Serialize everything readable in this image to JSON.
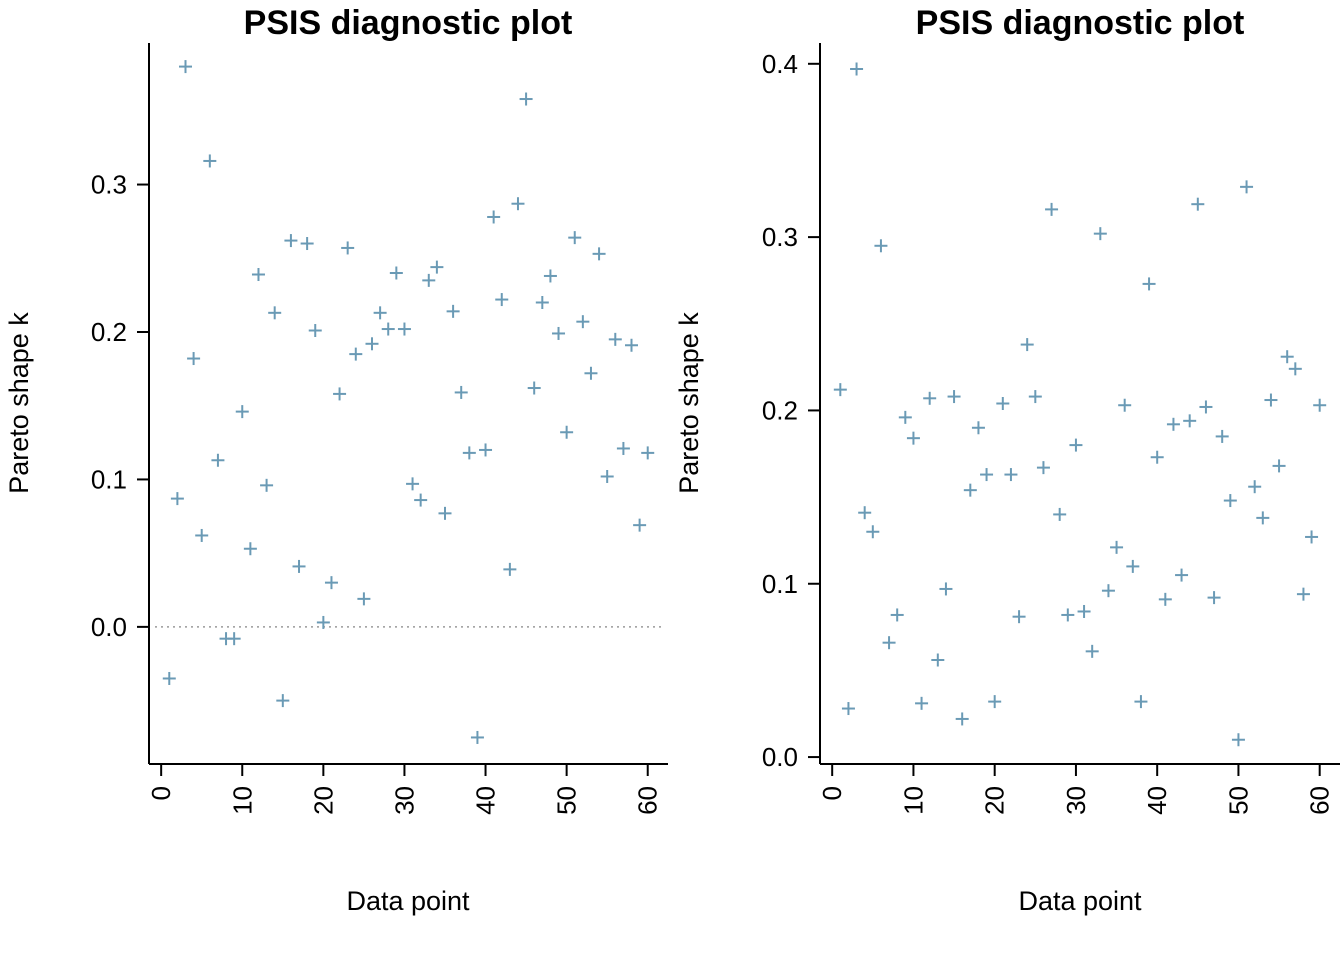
{
  "chart_data": [
    {
      "type": "scatter",
      "title": "PSIS diagnostic plot",
      "xlabel": "Data point",
      "ylabel": "Pareto shape k",
      "xlim": [
        -1.5,
        62.5
      ],
      "ylim": [
        -0.093,
        0.396
      ],
      "x_ticks": [
        0,
        10,
        20,
        30,
        40,
        50,
        60
      ],
      "y_ticks": [
        0.0,
        0.1,
        0.2,
        0.3
      ],
      "y_tick_labels": [
        "0.0",
        "0.1",
        "0.2",
        "0.3"
      ],
      "reference_line": 0,
      "marker": "+",
      "color": "#6a9ab5",
      "series": [
        {
          "x": [
            1,
            2,
            3,
            4,
            5,
            6,
            7,
            8,
            9,
            10,
            11,
            12,
            13,
            14,
            15,
            16,
            17,
            18,
            19,
            20,
            21,
            22,
            23,
            24,
            25,
            26,
            27,
            28,
            29,
            30,
            31,
            32,
            33,
            34,
            35,
            36,
            37,
            38,
            39,
            40,
            41,
            42,
            43,
            44,
            45,
            46,
            47,
            48,
            49,
            50,
            51,
            52,
            53,
            54,
            55,
            56,
            57,
            58,
            59,
            60
          ],
          "values": [
            -0.035,
            0.087,
            0.38,
            0.182,
            0.062,
            0.316,
            0.113,
            -0.008,
            -0.008,
            0.146,
            0.053,
            0.239,
            0.096,
            0.213,
            -0.05,
            0.262,
            0.041,
            0.26,
            0.201,
            0.003,
            0.03,
            0.158,
            0.257,
            0.185,
            0.019,
            0.192,
            0.213,
            0.202,
            0.24,
            0.202,
            0.097,
            0.086,
            0.235,
            0.244,
            0.077,
            0.214,
            0.159,
            0.118,
            -0.075,
            0.12,
            0.278,
            0.222,
            0.039,
            0.287,
            0.358,
            0.162,
            0.22,
            0.238,
            0.199,
            0.132,
            0.264,
            0.207,
            0.172,
            0.253,
            0.102,
            0.195,
            0.121,
            0.191,
            0.069,
            0.118
          ]
        }
      ]
    },
    {
      "type": "scatter",
      "title": "PSIS diagnostic plot",
      "xlabel": "Data point",
      "ylabel": "Pareto shape k",
      "xlim": [
        -1.5,
        62.5
      ],
      "ylim": [
        -0.004,
        0.412
      ],
      "x_ticks": [
        0,
        10,
        20,
        30,
        40,
        50,
        60
      ],
      "y_ticks": [
        0.0,
        0.1,
        0.2,
        0.3,
        0.4
      ],
      "y_tick_labels": [
        "0.0",
        "0.1",
        "0.2",
        "0.3",
        "0.4"
      ],
      "marker": "+",
      "color": "#6a9ab5",
      "series": [
        {
          "x": [
            1,
            2,
            3,
            4,
            5,
            6,
            7,
            8,
            9,
            10,
            11,
            12,
            13,
            14,
            15,
            16,
            17,
            18,
            19,
            20,
            21,
            22,
            23,
            24,
            25,
            26,
            27,
            28,
            29,
            30,
            31,
            32,
            33,
            34,
            35,
            36,
            37,
            38,
            39,
            40,
            41,
            42,
            43,
            44,
            45,
            46,
            47,
            48,
            49,
            50,
            51,
            52,
            53,
            54,
            55,
            56,
            57,
            58,
            59,
            60
          ],
          "values": [
            0.212,
            0.028,
            0.397,
            0.141,
            0.13,
            0.295,
            0.066,
            0.082,
            0.196,
            0.184,
            0.031,
            0.207,
            0.056,
            0.097,
            0.208,
            0.022,
            0.154,
            0.19,
            0.163,
            0.032,
            0.204,
            0.163,
            0.081,
            0.238,
            0.208,
            0.167,
            0.316,
            0.14,
            0.082,
            0.18,
            0.084,
            0.061,
            0.302,
            0.096,
            0.121,
            0.203,
            0.11,
            0.032,
            0.273,
            0.173,
            0.091,
            0.192,
            0.105,
            0.194,
            0.319,
            0.202,
            0.092,
            0.185,
            0.148,
            0.01,
            0.329,
            0.156,
            0.138,
            0.206,
            0.168,
            0.231,
            0.224,
            0.094,
            0.127,
            0.203
          ]
        }
      ]
    }
  ]
}
